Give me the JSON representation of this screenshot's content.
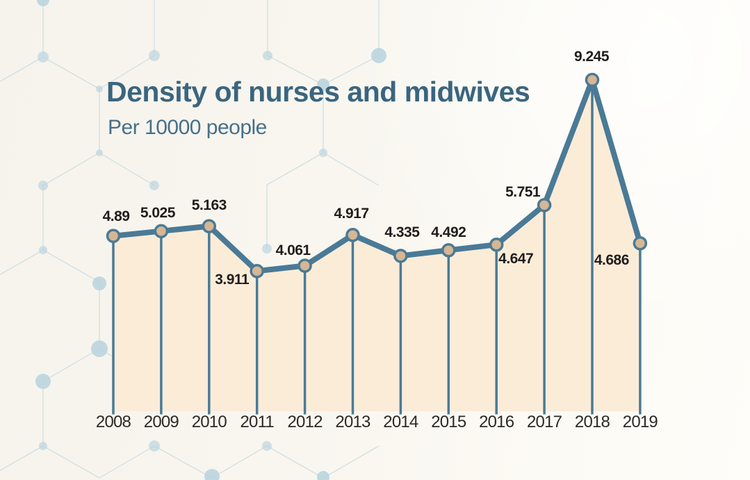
{
  "header": {
    "title": "Density of nurses and midwives",
    "subtitle": "Per 10000 people",
    "title_color": "#3a657f",
    "subtitle_color": "#45708b"
  },
  "chart_data": {
    "type": "line",
    "title": "Density of nurses and midwives",
    "subtitle": "Per 10000 people",
    "categories": [
      "2008",
      "2009",
      "2010",
      "2011",
      "2012",
      "2013",
      "2014",
      "2015",
      "2016",
      "2017",
      "2018",
      "2019"
    ],
    "values": [
      4.89,
      5.025,
      5.163,
      3.911,
      4.061,
      4.917,
      4.335,
      4.492,
      4.647,
      5.751,
      9.245,
      4.686
    ],
    "value_labels": [
      "4.89",
      "5.025",
      "5.163",
      "3.911",
      "4.061",
      "4.917",
      "4.335",
      "4.492",
      "4.647",
      "5.751",
      "9.245",
      "4.686"
    ],
    "xlabel": "",
    "ylabel": "",
    "ylim": [
      0,
      9.6
    ],
    "grid": false,
    "legend": "none",
    "area_fill": true,
    "markers": true,
    "drop_lines": true,
    "colors": {
      "line": "#4a7a96",
      "marker_fill": "#d7b694",
      "marker_stroke": "#4a7a96",
      "area": "#fbecd8",
      "data_label": "#201d1d",
      "axis_label": "#2b2a28"
    }
  },
  "background": {
    "base_color": "#f7f5ee",
    "hex_line_color": "#c7dae2",
    "hex_node_color": "#b9d2de"
  }
}
